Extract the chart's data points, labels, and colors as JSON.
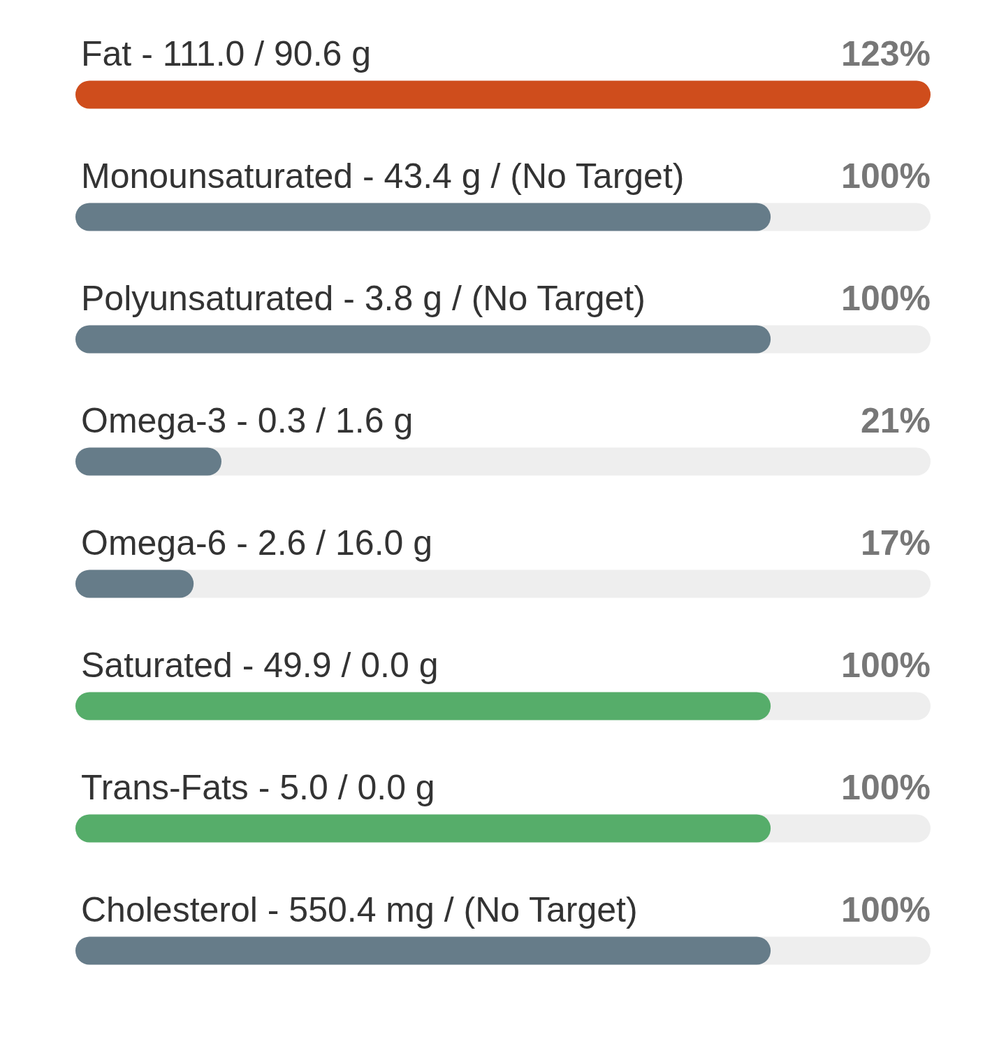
{
  "chart_data": {
    "type": "bar",
    "orientation": "horizontal",
    "categories": [
      "Fat - 111.0 / 90.6 g",
      "Monounsaturated - 43.4 g / (No Target)",
      "Polyunsaturated - 3.8 g / (No Target)",
      "Omega-3 - 0.3 / 1.6 g",
      "Omega-6 - 2.6 / 16.0 g",
      "Saturated - 49.9 / 0.0 g",
      "Trans-Fats - 5.0 / 0.0 g",
      "Cholesterol - 550.4 mg / (No Target)"
    ],
    "values": [
      123,
      100,
      100,
      21,
      17,
      100,
      100,
      100
    ],
    "colors": [
      "#cf4d1c",
      "#667c89",
      "#667c89",
      "#667c89",
      "#667c89",
      "#56ad6a",
      "#56ad6a",
      "#667c89"
    ],
    "value_labels": [
      "123%",
      "100%",
      "100%",
      "21%",
      "17%",
      "100%",
      "100%",
      "100%"
    ]
  }
}
